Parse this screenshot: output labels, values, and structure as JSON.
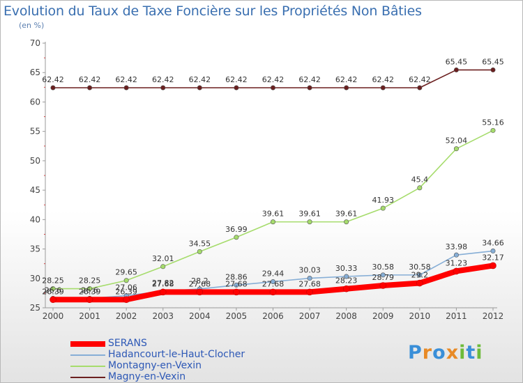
{
  "header": {
    "title": "Evolution du Taux de Taxe Foncière sur les Propriétés Non Bâties",
    "unit": "(en %)"
  },
  "logo": {
    "letters": [
      "P",
      "r",
      "o",
      "x",
      "i",
      "t",
      "i"
    ],
    "colors": [
      "#3a8fd8",
      "#e88a26",
      "#3a8fd8",
      "#e88a26",
      "#6dbb3a",
      "#3a8fd8",
      "#6dbb3a"
    ]
  },
  "chart_data": {
    "type": "line",
    "title": "Evolution du Taux de Taxe Foncière sur les Propriétés Non Bâties",
    "ylabel": "(en %)",
    "xlabel": "",
    "x": [
      "2000",
      "2001",
      "2002",
      "2003",
      "2004",
      "2005",
      "2006",
      "2007",
      "2008",
      "2009",
      "2010",
      "2011",
      "2012"
    ],
    "ylim": [
      25,
      70
    ],
    "yticks": [
      25,
      30,
      35,
      40,
      45,
      50,
      55,
      60,
      65,
      70
    ],
    "grid": false,
    "legend_position": "bottom-left",
    "series": [
      {
        "name": "SERANS",
        "color": "#ff0000",
        "values": [
          26.39,
          26.39,
          26.39,
          27.68,
          27.68,
          27.68,
          27.68,
          27.68,
          28.23,
          28.79,
          29.2,
          31.23,
          32.17
        ],
        "labels": [
          "26.39",
          "26.39",
          "26.39",
          "27.68",
          "27.68",
          "27.68",
          "27.68",
          "27.68",
          "28.23",
          "28.79",
          "29.2",
          "31.23",
          "32.17"
        ]
      },
      {
        "name": "Hadancourt-le-Haut-Clocher",
        "color": "#86aed6",
        "values": [
          26.6,
          26.6,
          27.06,
          27.82,
          28.2,
          28.86,
          29.44,
          30.03,
          30.33,
          30.58,
          30.58,
          33.98,
          34.66
        ],
        "labels": [
          "26.6",
          "26.6",
          "27.06",
          "27.82",
          "28.2",
          "28.86",
          "29.44",
          "30.03",
          "30.33",
          "30.58",
          "30.58",
          "33.98",
          "34.66"
        ]
      },
      {
        "name": "Montagny-en-Vexin",
        "color": "#a6dc6c",
        "values": [
          28.25,
          28.25,
          29.65,
          32.01,
          34.55,
          36.99,
          39.61,
          39.61,
          39.61,
          41.93,
          45.4,
          52.04,
          55.16
        ],
        "labels": [
          "28.25",
          "28.25",
          "29.65",
          "32.01",
          "34.55",
          "36.99",
          "39.61",
          "39.61",
          "39.61",
          "41.93",
          "45.4",
          "52.04",
          "55.16"
        ]
      },
      {
        "name": "Magny-en-Vexin",
        "color": "#6b1f1f",
        "values": [
          62.42,
          62.42,
          62.42,
          62.42,
          62.42,
          62.42,
          62.42,
          62.42,
          62.42,
          62.42,
          62.42,
          65.45,
          65.45
        ],
        "labels": [
          "62.42",
          "62.42",
          "62.42",
          "62.42",
          "62.42",
          "62.42",
          "62.42",
          "62.42",
          "62.42",
          "62.42",
          "62.42",
          "65.45",
          "65.45"
        ]
      }
    ]
  }
}
